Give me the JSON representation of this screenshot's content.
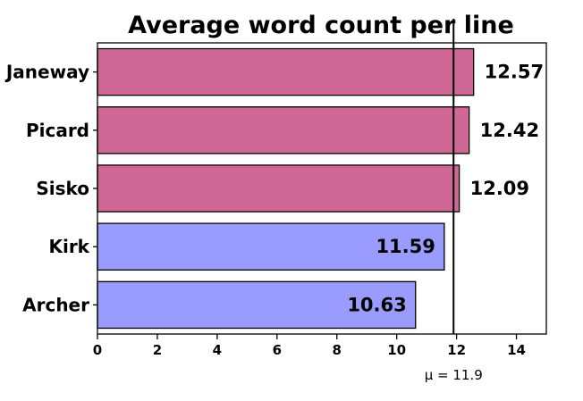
{
  "chart_data": {
    "type": "bar",
    "orientation": "horizontal",
    "title": "Average word count per line",
    "xlabel": "",
    "ylabel": "",
    "categories": [
      "Janeway",
      "Picard",
      "Sisko",
      "Kirk",
      "Archer"
    ],
    "values": [
      12.57,
      12.42,
      12.09,
      11.59,
      10.63
    ],
    "value_labels": [
      "12.57",
      "12.42",
      "12.09",
      "11.59",
      "10.63"
    ],
    "bar_colors": [
      "#d06896",
      "#d06896",
      "#d06896",
      "#9a9cfd",
      "#9a9cfd"
    ],
    "label_position": [
      "outside",
      "outside",
      "outside",
      "inside",
      "inside"
    ],
    "xlim": [
      0,
      15
    ],
    "xticks": [
      0,
      2,
      4,
      6,
      8,
      10,
      12,
      14
    ],
    "xtick_labels": [
      "0",
      "2",
      "4",
      "6",
      "8",
      "10",
      "12",
      "14"
    ],
    "grid": false,
    "mean_line": {
      "value": 11.9,
      "label": "μ = 11.9",
      "color": "#000000"
    }
  }
}
